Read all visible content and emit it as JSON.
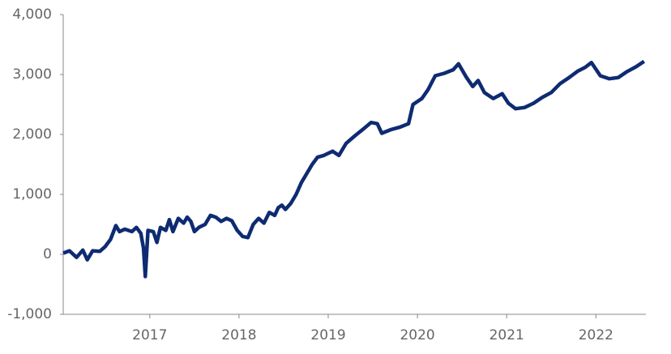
{
  "chart_data": {
    "type": "line",
    "color": "#0e2b72",
    "x": [
      2016.03,
      2016.1,
      2016.18,
      2016.25,
      2016.3,
      2016.36,
      2016.44,
      2016.5,
      2016.56,
      2016.62,
      2016.66,
      2016.72,
      2016.8,
      2016.85,
      2016.9,
      2016.93,
      2016.95,
      2016.98,
      2017.04,
      2017.08,
      2017.12,
      2017.18,
      2017.22,
      2017.26,
      2017.32,
      2017.38,
      2017.42,
      2017.46,
      2017.5,
      2017.55,
      2017.62,
      2017.68,
      2017.74,
      2017.8,
      2017.86,
      2017.92,
      2017.98,
      2018.04,
      2018.1,
      2018.16,
      2018.22,
      2018.28,
      2018.34,
      2018.4,
      2018.44,
      2018.48,
      2018.52,
      2018.58,
      2018.64,
      2018.7,
      2018.76,
      2018.82,
      2018.88,
      2018.95,
      2019.05,
      2019.12,
      2019.2,
      2019.3,
      2019.4,
      2019.48,
      2019.55,
      2019.6,
      2019.7,
      2019.8,
      2019.9,
      2019.95,
      2020.05,
      2020.12,
      2020.2,
      2020.3,
      2020.4,
      2020.46,
      2020.55,
      2020.62,
      2020.68,
      2020.75,
      2020.85,
      2020.95,
      2021.02,
      2021.1,
      2021.2,
      2021.3,
      2021.4,
      2021.5,
      2021.6,
      2021.7,
      2021.8,
      2021.88,
      2021.95,
      2022.05,
      2022.15,
      2022.25,
      2022.35,
      2022.45,
      2022.54
    ],
    "values": [
      20,
      60,
      -50,
      70,
      -90,
      60,
      50,
      130,
      250,
      480,
      380,
      420,
      380,
      450,
      350,
      100,
      -370,
      400,
      380,
      200,
      450,
      400,
      580,
      380,
      600,
      520,
      620,
      550,
      380,
      450,
      500,
      650,
      620,
      550,
      600,
      560,
      400,
      300,
      280,
      500,
      600,
      520,
      700,
      650,
      780,
      820,
      750,
      850,
      1000,
      1200,
      1350,
      1500,
      1620,
      1650,
      1720,
      1650,
      1850,
      1980,
      2100,
      2200,
      2180,
      2020,
      2080,
      2120,
      2180,
      2500,
      2600,
      2750,
      2980,
      3020,
      3080,
      3180,
      2950,
      2800,
      2900,
      2700,
      2600,
      2680,
      2520,
      2430,
      2450,
      2520,
      2620,
      2700,
      2850,
      2950,
      3060,
      3120,
      3200,
      2980,
      2930,
      2950,
      3050,
      3130,
      3220
    ],
    "xlim": [
      2016.03,
      2022.56
    ],
    "xticks": [
      2017,
      2018,
      2019,
      2020,
      2021,
      2022
    ],
    "ylim": [
      -1000,
      4000
    ],
    "yticks": [
      {
        "value": -1000,
        "label": "-1,000"
      },
      0,
      {
        "value": 1000,
        "label": "1,000"
      },
      {
        "value": 2000,
        "label": "2,000"
      },
      {
        "value": 3000,
        "label": "3,000"
      },
      {
        "value": 4000,
        "label": "4,000"
      }
    ]
  }
}
